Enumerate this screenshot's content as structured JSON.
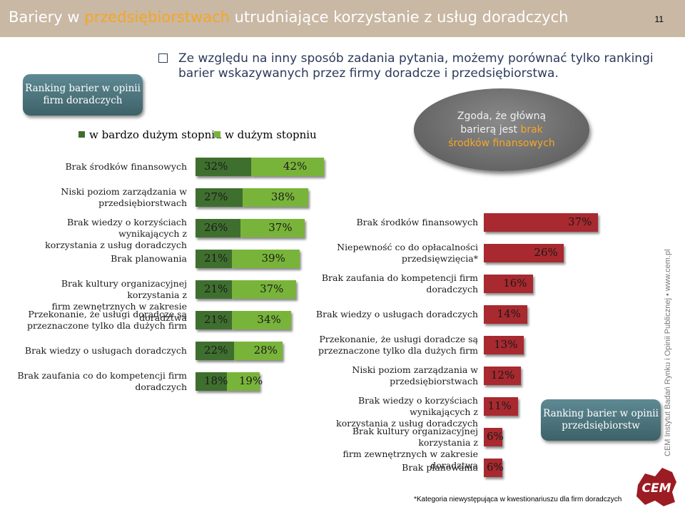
{
  "header": {
    "title_part1": "Bariery w ",
    "title_highlight": "przedsiębiorstwach",
    "title_part2": " utrudniające korzystanie z usług doradczych",
    "page_number": "11"
  },
  "intro": {
    "text": "Ze względu na inny sposób zadania pytania, możemy porównać tylko rankingi barier wskazywanych przez firmy doradcze i przedsiębiorstwa."
  },
  "left_badge": "Ranking barier w opinii firm doradczych",
  "right_badge": "Ranking barier w opinii przedsiębiorstw",
  "ellipse": {
    "line1": "Zgoda, że główną",
    "line2_plain": "barierą jest ",
    "line2_highlight": "brak",
    "line3_highlight": "środków finansowych"
  },
  "colors": {
    "very_large": "#3f6f2e",
    "large": "#79b43a",
    "enterprise": "#a8292f"
  },
  "chart_data": [
    {
      "type": "bar",
      "orientation": "horizontal",
      "stacked": true,
      "legend_position": "top",
      "series": [
        {
          "name": "w bardzo dużym stopniu",
          "values": [
            32,
            27,
            26,
            21,
            21,
            21,
            22,
            18
          ]
        },
        {
          "name": "w dużym stopniu",
          "values": [
            42,
            38,
            37,
            39,
            37,
            34,
            28,
            19
          ]
        }
      ],
      "categories": [
        [
          "Brak środków finansowych"
        ],
        [
          "Niski poziom zarządzania w",
          "przedsiębiorstwach"
        ],
        [
          "Brak wiedzy o korzyściach wynikających z",
          "korzystania z usług doradczych"
        ],
        [
          "Brak planowania"
        ],
        [
          "Brak kultury organizacyjnej korzystania z",
          "firm zewnętrznych w zakresie doradztwa"
        ],
        [
          "Przekonanie, że usługi doradcze są",
          "przeznaczone tylko dla dużych firm"
        ],
        [
          "Brak wiedzy o usługach doradczych"
        ],
        [
          "Brak zaufania co do kompetencji firm",
          "doradczych"
        ]
      ],
      "value_labels_1": [
        "32%",
        "27%",
        "26%",
        "21%",
        "21%",
        "21%",
        "22%",
        "18%"
      ],
      "value_labels_2": [
        "42%",
        "38%",
        "37%",
        "39%",
        "37%",
        "34%",
        "28%",
        "19%"
      ]
    },
    {
      "type": "bar",
      "orientation": "horizontal",
      "series": [
        {
          "values": [
            37,
            26,
            16,
            14,
            13,
            12,
            11,
            6,
            6
          ]
        }
      ],
      "categories": [
        [
          "Brak środków finansowych"
        ],
        [
          "Niepewność co do opłacalności",
          "przedsięwzięcia*"
        ],
        [
          "Brak zaufania do kompetencji firm",
          "doradczych"
        ],
        [
          "Brak wiedzy o usługach doradczych"
        ],
        [
          "Przekonanie, że usługi doradcze są",
          "przeznaczone tylko dla dużych firm"
        ],
        [
          "Niski poziom zarządzania w",
          "przedsiębiorstwach"
        ],
        [
          "Brak wiedzy o korzyściach wynikających z",
          "korzystania z usług doradczych"
        ],
        [
          "Brak kultury organizacyjnej korzystania z",
          "firm zewnętrznych w zakresie doradztwa"
        ],
        [
          "Brak planowania"
        ]
      ],
      "value_labels": [
        "37%",
        "26%",
        "16%",
        "14%",
        "13%",
        "12%",
        "11%",
        "6%",
        "6%"
      ]
    }
  ],
  "footnote": "*Kategoria niewystępująca w kwestionariuszu dla firm doradczych",
  "side_credit": "CEM Instytut Badań Rynku i Opinii Publicznej • www.cem.pl",
  "logo_text": "CEM"
}
